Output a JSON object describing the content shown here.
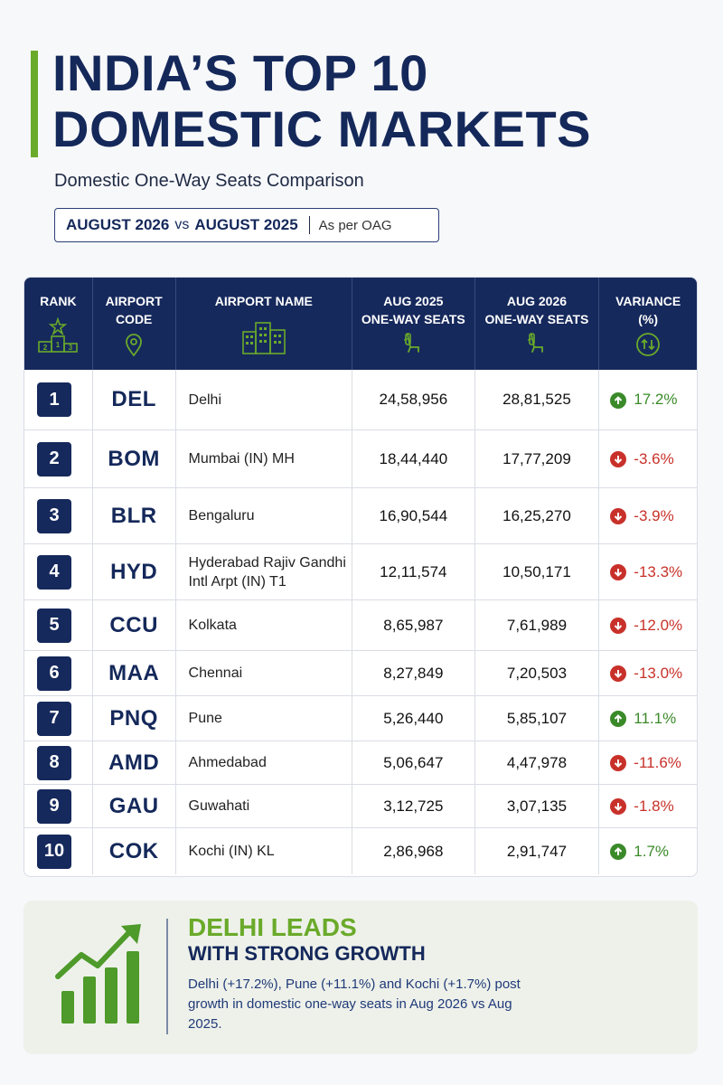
{
  "title_line1": "INDIA’S TOP 10",
  "title_line2": "DOMESTIC MARKETS",
  "subtitle": "Domestic One-Way Seats Comparison",
  "period": {
    "current": "AUGUST 2026",
    "vs": "vs",
    "previous": "AUGUST 2025",
    "source": "As per OAG"
  },
  "headers": {
    "rank": "RANK",
    "code_l1": "AIRPORT",
    "code_l2": "CODE",
    "name": "AIRPORT NAME",
    "aug2025_l1": "AUG 2025",
    "aug2025_l2": "ONE-WAY SEATS",
    "aug2026_l1": "AUG 2026",
    "aug2026_l2": "ONE-WAY SEATS",
    "variance_l1": "VARIANCE",
    "variance_l2": "(%)"
  },
  "podium_labels": [
    "1",
    "2",
    "3"
  ],
  "rows": [
    {
      "rank": "1",
      "code": "DEL",
      "name_l1": "Delhi",
      "name_l2": "",
      "aug2025": "24,58,956",
      "aug2026": "28,81,525",
      "variance": "17.2%",
      "direction": "up"
    },
    {
      "rank": "2",
      "code": "BOM",
      "name_l1": "Mumbai (IN) MH",
      "name_l2": "",
      "aug2025": "18,44,440",
      "aug2026": "17,77,209",
      "variance": "-3.6%",
      "direction": "down"
    },
    {
      "rank": "3",
      "code": "BLR",
      "name_l1": "Bengaluru",
      "name_l2": "",
      "aug2025": "16,90,544",
      "aug2026": "16,25,270",
      "variance": "-3.9%",
      "direction": "down"
    },
    {
      "rank": "4",
      "code": "HYD",
      "name_l1": "Hyderabad Rajiv Gandhi",
      "name_l2": "Intl Arpt (IN) T1",
      "aug2025": "12,11,574",
      "aug2026": "10,50,171",
      "variance": "-13.3%",
      "direction": "down"
    },
    {
      "rank": "5",
      "code": "CCU",
      "name_l1": "Kolkata",
      "name_l2": "",
      "aug2025": "8,65,987",
      "aug2026": "7,61,989",
      "variance": "-12.0%",
      "direction": "down"
    },
    {
      "rank": "6",
      "code": "MAA",
      "name_l1": "Chennai",
      "name_l2": "",
      "aug2025": "8,27,849",
      "aug2026": "7,20,503",
      "variance": "-13.0%",
      "direction": "down"
    },
    {
      "rank": "7",
      "code": "PNQ",
      "name_l1": "Pune",
      "name_l2": "",
      "aug2025": "5,26,440",
      "aug2026": "5,85,107",
      "variance": "11.1%",
      "direction": "up"
    },
    {
      "rank": "8",
      "code": "AMD",
      "name_l1": "Ahmedabad",
      "name_l2": "",
      "aug2025": "5,06,647",
      "aug2026": "4,47,978",
      "variance": "-11.6%",
      "direction": "down"
    },
    {
      "rank": "9",
      "code": "GAU",
      "name_l1": "Guwahati",
      "name_l2": "",
      "aug2025": "3,12,725",
      "aug2026": "3,07,135",
      "variance": "-1.8%",
      "direction": "down"
    },
    {
      "rank": "10",
      "code": "COK",
      "name_l1": "Kochi (IN) KL",
      "name_l2": "",
      "aug2025": "2,86,968",
      "aug2026": "2,91,747",
      "variance": "1.7%",
      "direction": "up"
    }
  ],
  "callout": {
    "heading1": "DELHI LEADS",
    "heading2": "WITH STRONG GROWTH",
    "body": "Delhi (+17.2%), Pune (+11.1%) and Kochi (+1.7%) post growth in domestic one-way seats in Aug 2026 vs Aug 2025."
  },
  "colors": {
    "navy": "#16295c",
    "green": "#6aaa2a",
    "up": "#3b8a2a",
    "down": "#c8312a"
  },
  "icons": [
    "podium-icon",
    "location-pin-icon",
    "buildings-icon",
    "seat-icon",
    "swap-arrows-icon",
    "arrow-up-icon",
    "arrow-down-icon",
    "growth-chart-icon"
  ]
}
